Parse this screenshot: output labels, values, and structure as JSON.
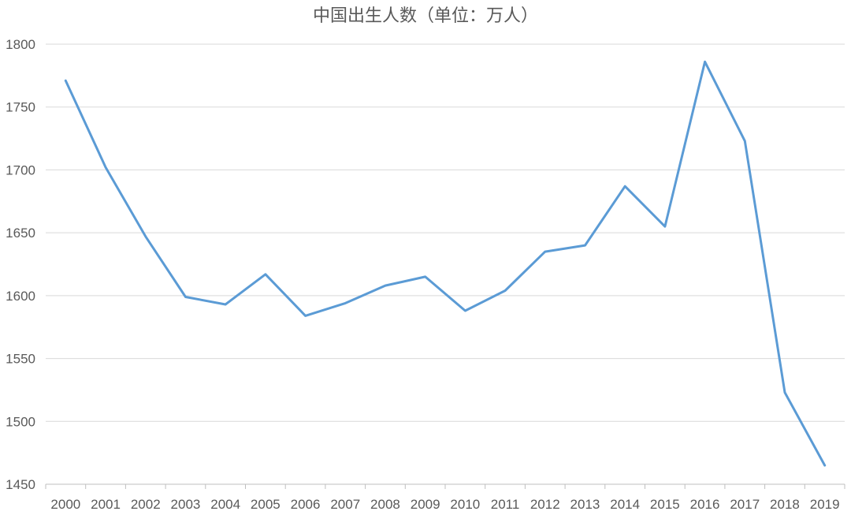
{
  "chart_data": {
    "type": "line",
    "title": "中国出生人数（单位：万人）",
    "categories": [
      "2000",
      "2001",
      "2002",
      "2003",
      "2004",
      "2005",
      "2006",
      "2007",
      "2008",
      "2009",
      "2010",
      "2011",
      "2012",
      "2013",
      "2014",
      "2015",
      "2016",
      "2017",
      "2018",
      "2019"
    ],
    "series": [
      {
        "values": [
          1771,
          1702,
          1647,
          1599,
          1593,
          1617,
          1584,
          1594,
          1608,
          1615,
          1588,
          1604,
          1635,
          1640,
          1687,
          1655,
          1786,
          1723,
          1523,
          1465
        ]
      }
    ],
    "ylim": [
      1450,
      1800
    ],
    "yticks": [
      "1450",
      "1500",
      "1550",
      "1600",
      "1650",
      "1700",
      "1750",
      "1800"
    ],
    "grid": "horizontal",
    "legend": "none",
    "colors": {
      "line": "#5b9bd5",
      "grid": "#d9d9d9",
      "text": "#595959"
    }
  }
}
